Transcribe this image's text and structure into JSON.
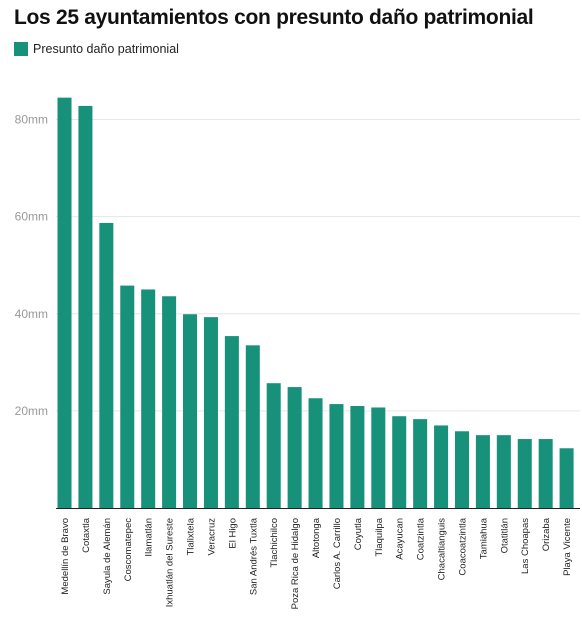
{
  "chart_data": {
    "type": "bar",
    "title": "Los 25 ayuntamientos con presunto daño patrimonial",
    "legend": {
      "position": "top-left"
    },
    "series": [
      {
        "name": "Presunto daño patrimonial",
        "color": "#17917a",
        "values": [
          84.5,
          82.8,
          58.7,
          45.8,
          45.0,
          43.6,
          39.9,
          39.3,
          35.4,
          33.5,
          25.7,
          24.9,
          22.6,
          21.4,
          21.0,
          20.7,
          18.9,
          18.3,
          17.0,
          15.8,
          15.0,
          15.0,
          14.2,
          14.2,
          12.3
        ]
      }
    ],
    "categories": [
      "Medellín de Bravo",
      "Cotaxtla",
      "Sayula de Alemán",
      "Coscomatepec",
      "Ilamatlán",
      "Ixhuatlán del Sureste",
      "Tlalixtela",
      "Veracruz",
      "El Higo",
      "San Andrés Tuxtla",
      "Tlachichilco",
      "Poza Rica de Hidalgo",
      "Altotonga",
      "Carlos A. Carrillo",
      "Coyutla",
      "Tlaquilpa",
      "Acayucan",
      "Coatzintla",
      "Chacaltianguis",
      "Coacoatzintla",
      "Tamiahua",
      "Otatitlán",
      "Las Choapas",
      "Orizaba",
      "Playa Vicente"
    ],
    "y_ticks": [
      {
        "value": 20,
        "label": "20mm"
      },
      {
        "value": 40,
        "label": "40mm"
      },
      {
        "value": 60,
        "label": "60mm"
      },
      {
        "value": 80,
        "label": "80mm"
      }
    ],
    "ylim": [
      0,
      88
    ],
    "grid": true
  }
}
